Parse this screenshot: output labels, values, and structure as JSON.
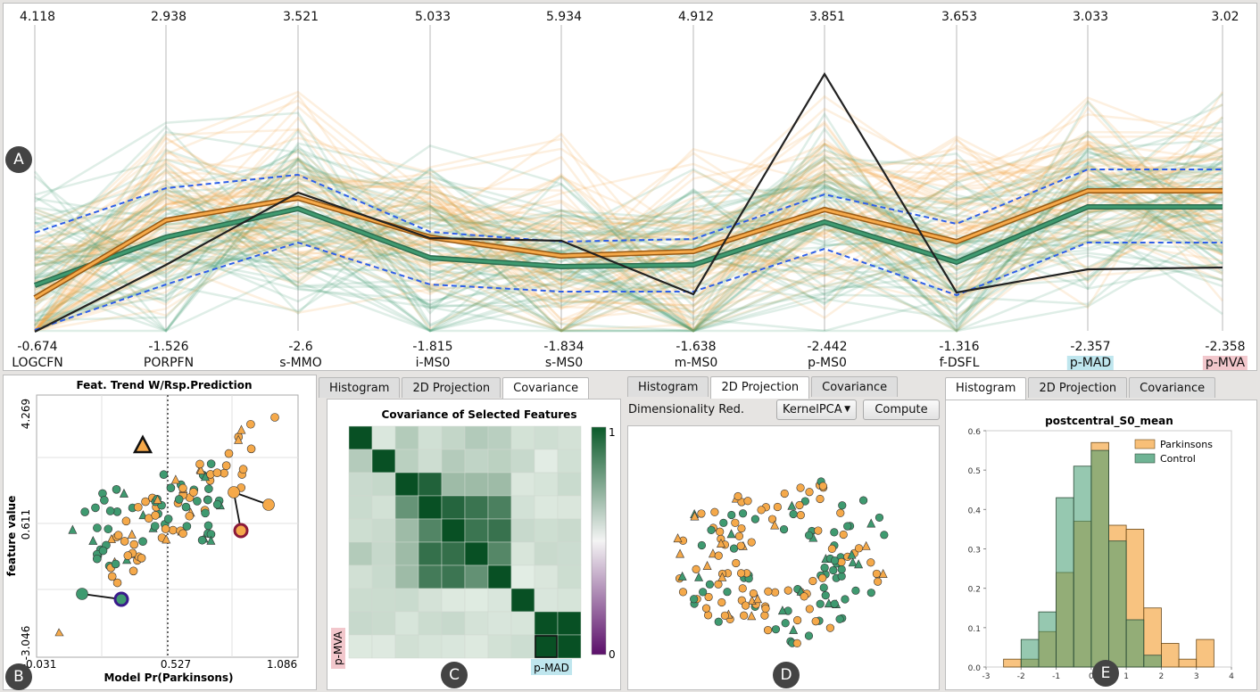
{
  "parallel_coords": {
    "axes": [
      {
        "name": "LOGCFN",
        "max": "4.118",
        "min": "-0.674"
      },
      {
        "name": "PORPFN",
        "max": "2.938",
        "min": "-1.526"
      },
      {
        "name": "s-MMO",
        "max": "3.521",
        "min": "-2.6"
      },
      {
        "name": "i-MS0",
        "max": "5.033",
        "min": "-1.815"
      },
      {
        "name": "s-MS0",
        "max": "5.934",
        "min": "-1.834"
      },
      {
        "name": "m-MS0",
        "max": "4.912",
        "min": "-1.638"
      },
      {
        "name": "p-MS0",
        "max": "3.851",
        "min": "-2.442"
      },
      {
        "name": "f-DSFL",
        "max": "3.653",
        "min": "-1.316"
      },
      {
        "name": "p-MAD",
        "max": "3.033",
        "min": "-2.357",
        "highlight": "#bfe6ee"
      },
      {
        "name": "p-MVA",
        "max": "3.02",
        "min": "-2.358",
        "highlight": "#f2c7cc"
      }
    ]
  },
  "colors": {
    "parkinsons": "#f5a94a",
    "control": "#3f9a70",
    "dashed": "#2f5fe8",
    "selected": "#222222"
  },
  "trend_plot": {
    "title": "Feat. Trend W/Rsp.Prediction",
    "xlabel": "Model Pr(Parkinsons)",
    "ylabel": "feature value",
    "x_ticks": [
      "-0.031",
      "0.527",
      "1.086"
    ],
    "y_ticks": [
      "4.269",
      "0.611",
      "-3.046"
    ]
  },
  "panel_c": {
    "tabs": [
      "Histogram",
      "2D Projection",
      "Covariance"
    ],
    "active": 2,
    "title": "Covariance of Selected Features",
    "colorbar_max": "1",
    "colorbar_min": "0",
    "row_label": "p-MVA",
    "col_label": "p-MAD"
  },
  "panel_d": {
    "tabs": [
      "Histogram",
      "2D Projection",
      "Covariance"
    ],
    "active": 1,
    "dim_label": "Dimensionality Red.",
    "method": "KernelPCA",
    "compute_label": "Compute"
  },
  "panel_e": {
    "tabs": [
      "Histogram",
      "2D Projection",
      "Covariance"
    ],
    "active": 0,
    "chart_title": "postcentral_S0_mean"
  },
  "chart_data": {
    "type": "bar",
    "title": "postcentral_S0_mean",
    "x_ticks": [
      "-3",
      "-2",
      "-1",
      "0",
      "1",
      "2",
      "3",
      "4"
    ],
    "y_ticks": [
      "0.0",
      "0.1",
      "0.2",
      "0.3",
      "0.4",
      "0.5",
      "0.6"
    ],
    "ylim": [
      0,
      0.6
    ],
    "xlim": [
      -3,
      4
    ],
    "bin_edges": [
      -2.5,
      -2,
      -1.5,
      -1,
      -0.5,
      0,
      0.5,
      1,
      1.5,
      2,
      2.5,
      3,
      3.5,
      4
    ],
    "legend": "top-right",
    "series": [
      {
        "name": "Parkinsons",
        "values": [
          0.02,
          0.02,
          0.09,
          0.24,
          0.37,
          0.57,
          0.36,
          0.35,
          0.15,
          0.06,
          0.02,
          0.07,
          0,
          0.07
        ]
      },
      {
        "name": "Control",
        "values": [
          0,
          0.07,
          0.14,
          0.43,
          0.51,
          0.55,
          0.32,
          0.12,
          0.03,
          0,
          0,
          0,
          0,
          0
        ]
      }
    ]
  },
  "badges": [
    "A",
    "B",
    "C",
    "D",
    "E"
  ]
}
